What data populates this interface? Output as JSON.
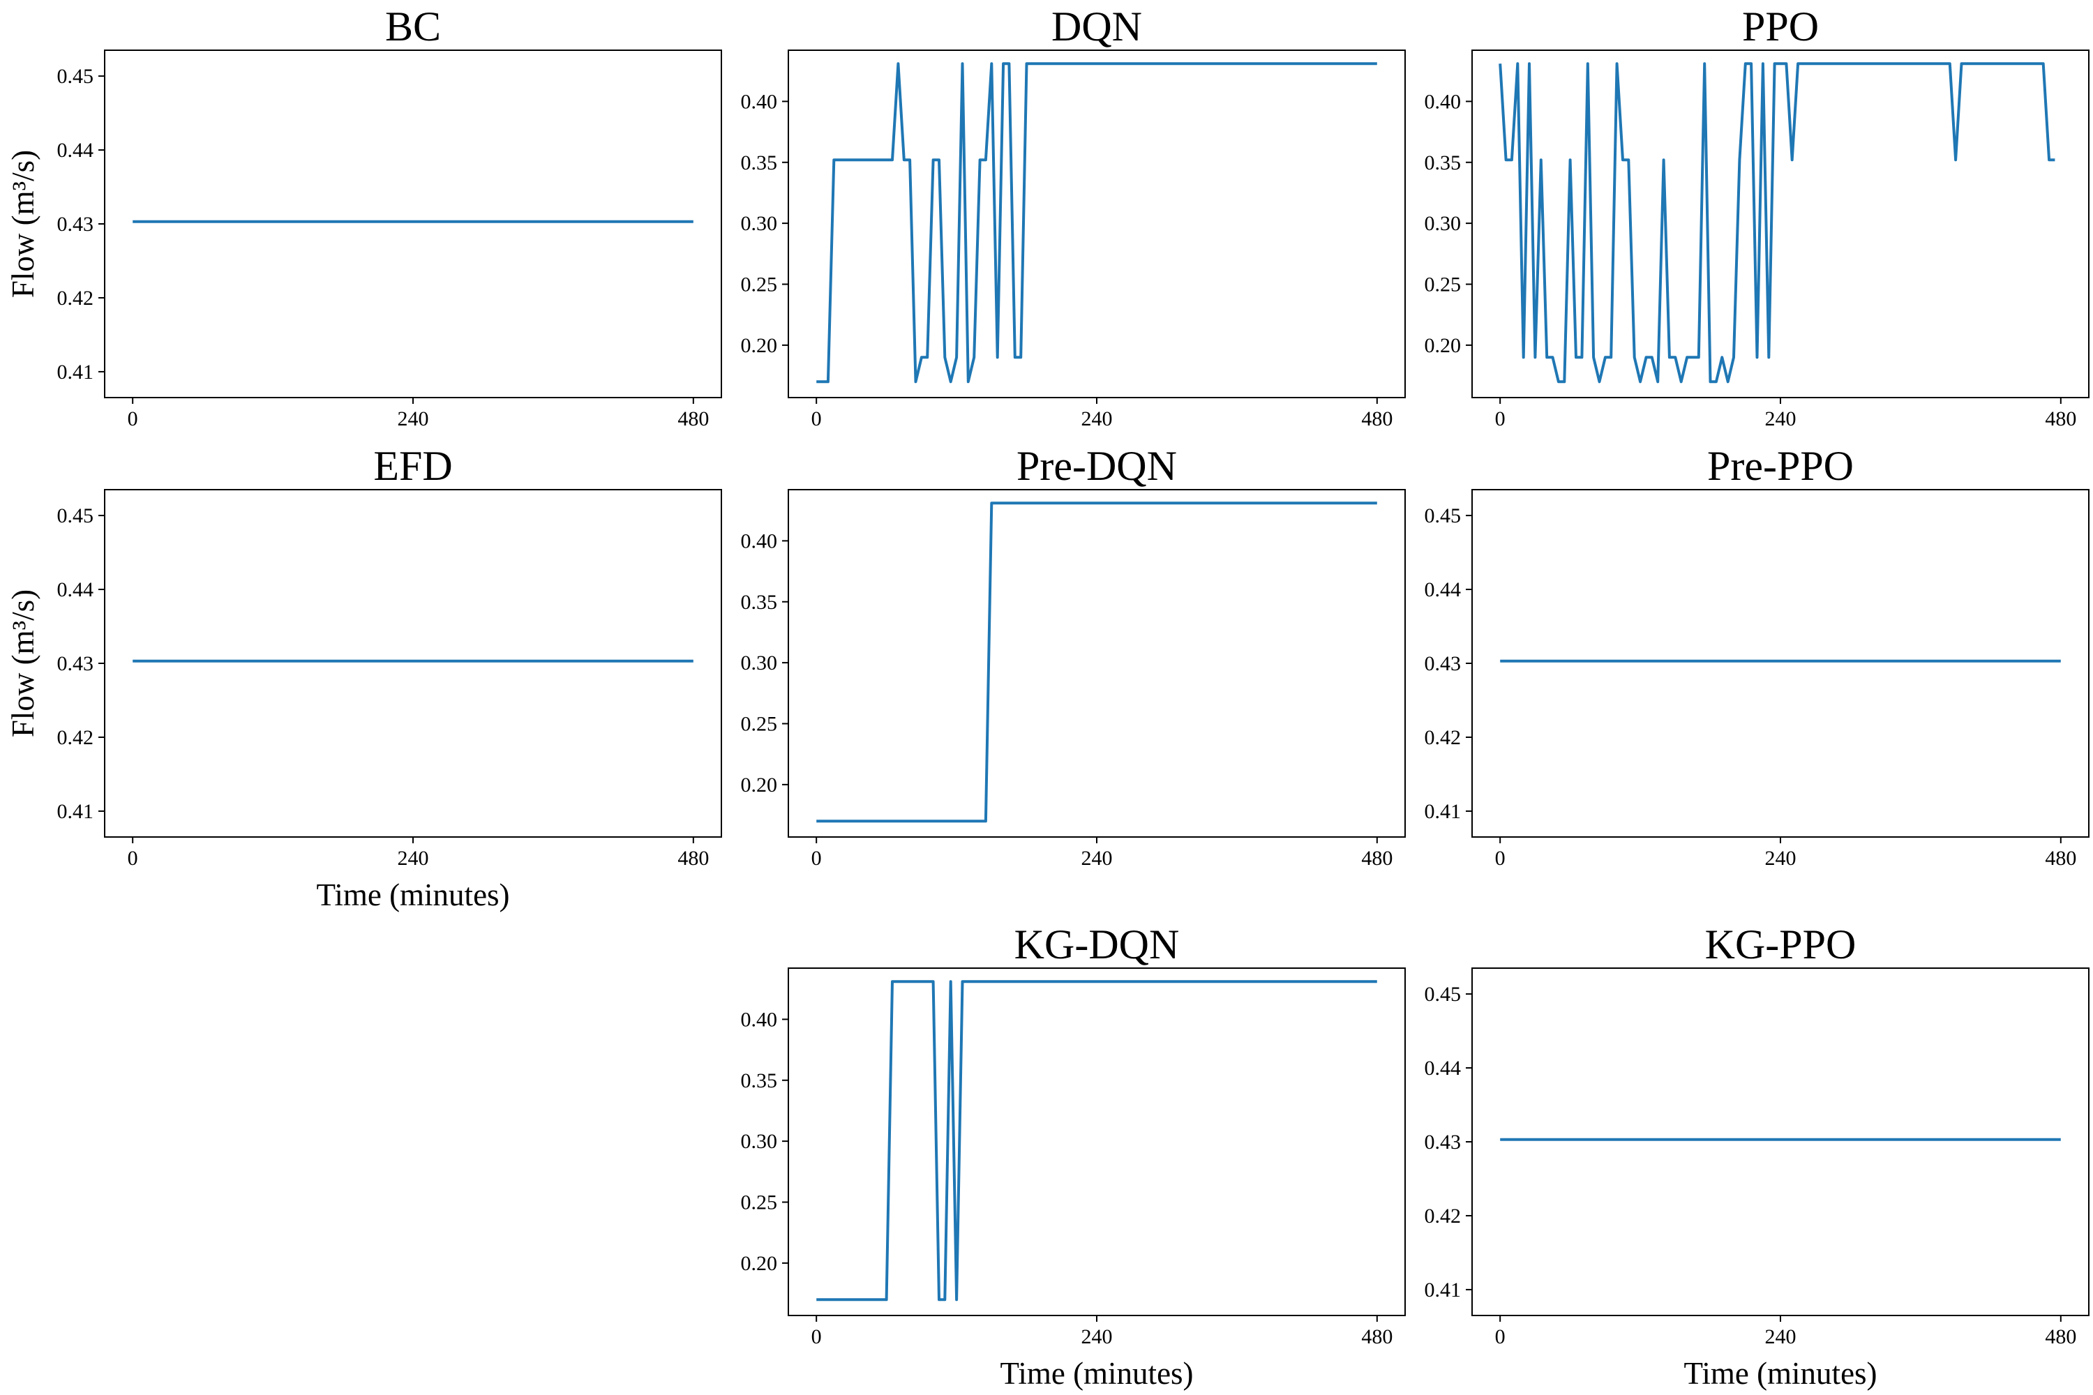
{
  "chart_data": [
    {
      "type": "line",
      "title": "BC",
      "xlabel": "",
      "ylabel": "Flow (m³/s)",
      "xticks": [
        "0",
        "240",
        "480"
      ],
      "yticks": [
        "0.41",
        "0.42",
        "0.43",
        "0.44",
        "0.45"
      ],
      "xlim": [
        -24,
        504
      ],
      "ylim": [
        0.4065,
        0.4535
      ],
      "series": [
        {
          "x": [
            0,
            480
          ],
          "y": [
            0.4303,
            0.4303
          ]
        }
      ]
    },
    {
      "type": "line",
      "title": "DQN",
      "xlabel": "",
      "ylabel": "",
      "xticks": [
        "0",
        "240",
        "480"
      ],
      "yticks": [
        "0.20",
        "0.25",
        "0.30",
        "0.35",
        "0.40"
      ],
      "xlim": [
        -24,
        504
      ],
      "ylim": [
        0.157,
        0.442
      ],
      "series": [
        {
          "x": [
            0,
            10,
            15,
            20,
            25,
            30,
            35,
            40,
            45,
            50,
            55,
            60,
            65,
            70,
            75,
            80,
            85,
            90,
            95,
            100,
            105,
            110,
            115,
            120,
            125,
            130,
            135,
            140,
            145,
            150,
            155,
            160,
            165,
            170,
            175,
            180,
            480
          ],
          "y": [
            0.17,
            0.17,
            0.352,
            0.352,
            0.352,
            0.352,
            0.352,
            0.352,
            0.352,
            0.352,
            0.352,
            0.352,
            0.352,
            0.431,
            0.352,
            0.352,
            0.17,
            0.19,
            0.19,
            0.352,
            0.352,
            0.19,
            0.17,
            0.19,
            0.431,
            0.17,
            0.19,
            0.352,
            0.352,
            0.431,
            0.19,
            0.431,
            0.431,
            0.19,
            0.19,
            0.431,
            0.431
          ]
        }
      ]
    },
    {
      "type": "line",
      "title": "PPO",
      "xlabel": "",
      "ylabel": "",
      "xticks": [
        "0",
        "240",
        "480"
      ],
      "yticks": [
        "0.20",
        "0.25",
        "0.30",
        "0.35",
        "0.40"
      ],
      "xlim": [
        -24,
        504
      ],
      "ylim": [
        0.157,
        0.442
      ],
      "series": [
        {
          "x": [
            0,
            5,
            10,
            15,
            20,
            25,
            30,
            35,
            40,
            45,
            50,
            55,
            60,
            65,
            70,
            75,
            80,
            85,
            90,
            95,
            100,
            105,
            110,
            115,
            120,
            125,
            130,
            135,
            140,
            145,
            150,
            155,
            160,
            165,
            170,
            175,
            180,
            185,
            190,
            195,
            200,
            205,
            210,
            215,
            220,
            225,
            230,
            235,
            240,
            245,
            250,
            255,
            385,
            390,
            395,
            465,
            470,
            475
          ],
          "y": [
            0.431,
            0.352,
            0.352,
            0.431,
            0.19,
            0.431,
            0.19,
            0.352,
            0.19,
            0.19,
            0.17,
            0.17,
            0.352,
            0.19,
            0.19,
            0.431,
            0.19,
            0.17,
            0.19,
            0.19,
            0.431,
            0.352,
            0.352,
            0.19,
            0.17,
            0.19,
            0.19,
            0.17,
            0.352,
            0.19,
            0.19,
            0.17,
            0.19,
            0.19,
            0.19,
            0.431,
            0.17,
            0.17,
            0.19,
            0.17,
            0.19,
            0.352,
            0.431,
            0.431,
            0.19,
            0.431,
            0.19,
            0.431,
            0.431,
            0.431,
            0.352,
            0.431,
            0.431,
            0.352,
            0.431,
            0.431,
            0.352,
            0.352
          ]
        }
      ]
    },
    {
      "type": "line",
      "title": "EFD",
      "xlabel": "Time (minutes)",
      "ylabel": "Flow (m³/s)",
      "xticks": [
        "0",
        "240",
        "480"
      ],
      "yticks": [
        "0.41",
        "0.42",
        "0.43",
        "0.44",
        "0.45"
      ],
      "xlim": [
        -24,
        504
      ],
      "ylim": [
        0.4065,
        0.4535
      ],
      "series": [
        {
          "x": [
            0,
            480
          ],
          "y": [
            0.4303,
            0.4303
          ]
        }
      ]
    },
    {
      "type": "line",
      "title": "Pre-DQN",
      "xlabel": "",
      "ylabel": "",
      "xticks": [
        "0",
        "240",
        "480"
      ],
      "yticks": [
        "0.20",
        "0.25",
        "0.30",
        "0.35",
        "0.40"
      ],
      "xlim": [
        -24,
        504
      ],
      "ylim": [
        0.157,
        0.442
      ],
      "series": [
        {
          "x": [
            0,
            145,
            150,
            480
          ],
          "y": [
            0.17,
            0.17,
            0.431,
            0.431
          ]
        }
      ]
    },
    {
      "type": "line",
      "title": "Pre-PPO",
      "xlabel": "",
      "ylabel": "",
      "xticks": [
        "0",
        "240",
        "480"
      ],
      "yticks": [
        "0.41",
        "0.42",
        "0.43",
        "0.44",
        "0.45"
      ],
      "xlim": [
        -24,
        504
      ],
      "ylim": [
        0.4065,
        0.4535
      ],
      "series": [
        {
          "x": [
            0,
            480
          ],
          "y": [
            0.4303,
            0.4303
          ]
        }
      ]
    },
    {
      "type": "line",
      "title": "KG-DQN",
      "xlabel": "Time (minutes)",
      "ylabel": "",
      "xticks": [
        "0",
        "240",
        "480"
      ],
      "yticks": [
        "0.20",
        "0.25",
        "0.30",
        "0.35",
        "0.40"
      ],
      "xlim": [
        -24,
        504
      ],
      "ylim": [
        0.157,
        0.442
      ],
      "series": [
        {
          "x": [
            0,
            60,
            65,
            100,
            105,
            110,
            115,
            120,
            125,
            480
          ],
          "y": [
            0.17,
            0.17,
            0.431,
            0.431,
            0.17,
            0.17,
            0.431,
            0.17,
            0.431,
            0.431
          ]
        }
      ]
    },
    {
      "type": "line",
      "title": "KG-PPO",
      "xlabel": "Time (minutes)",
      "ylabel": "",
      "xticks": [
        "0",
        "240",
        "480"
      ],
      "yticks": [
        "0.41",
        "0.42",
        "0.43",
        "0.44",
        "0.45"
      ],
      "xlim": [
        -24,
        504
      ],
      "ylim": [
        0.4065,
        0.4535
      ],
      "series": [
        {
          "x": [
            0,
            480
          ],
          "y": [
            0.4303,
            0.4303
          ]
        }
      ]
    }
  ],
  "colors": {
    "line": "#1f77b4",
    "axis": "#000000",
    "background": "#ffffff"
  }
}
